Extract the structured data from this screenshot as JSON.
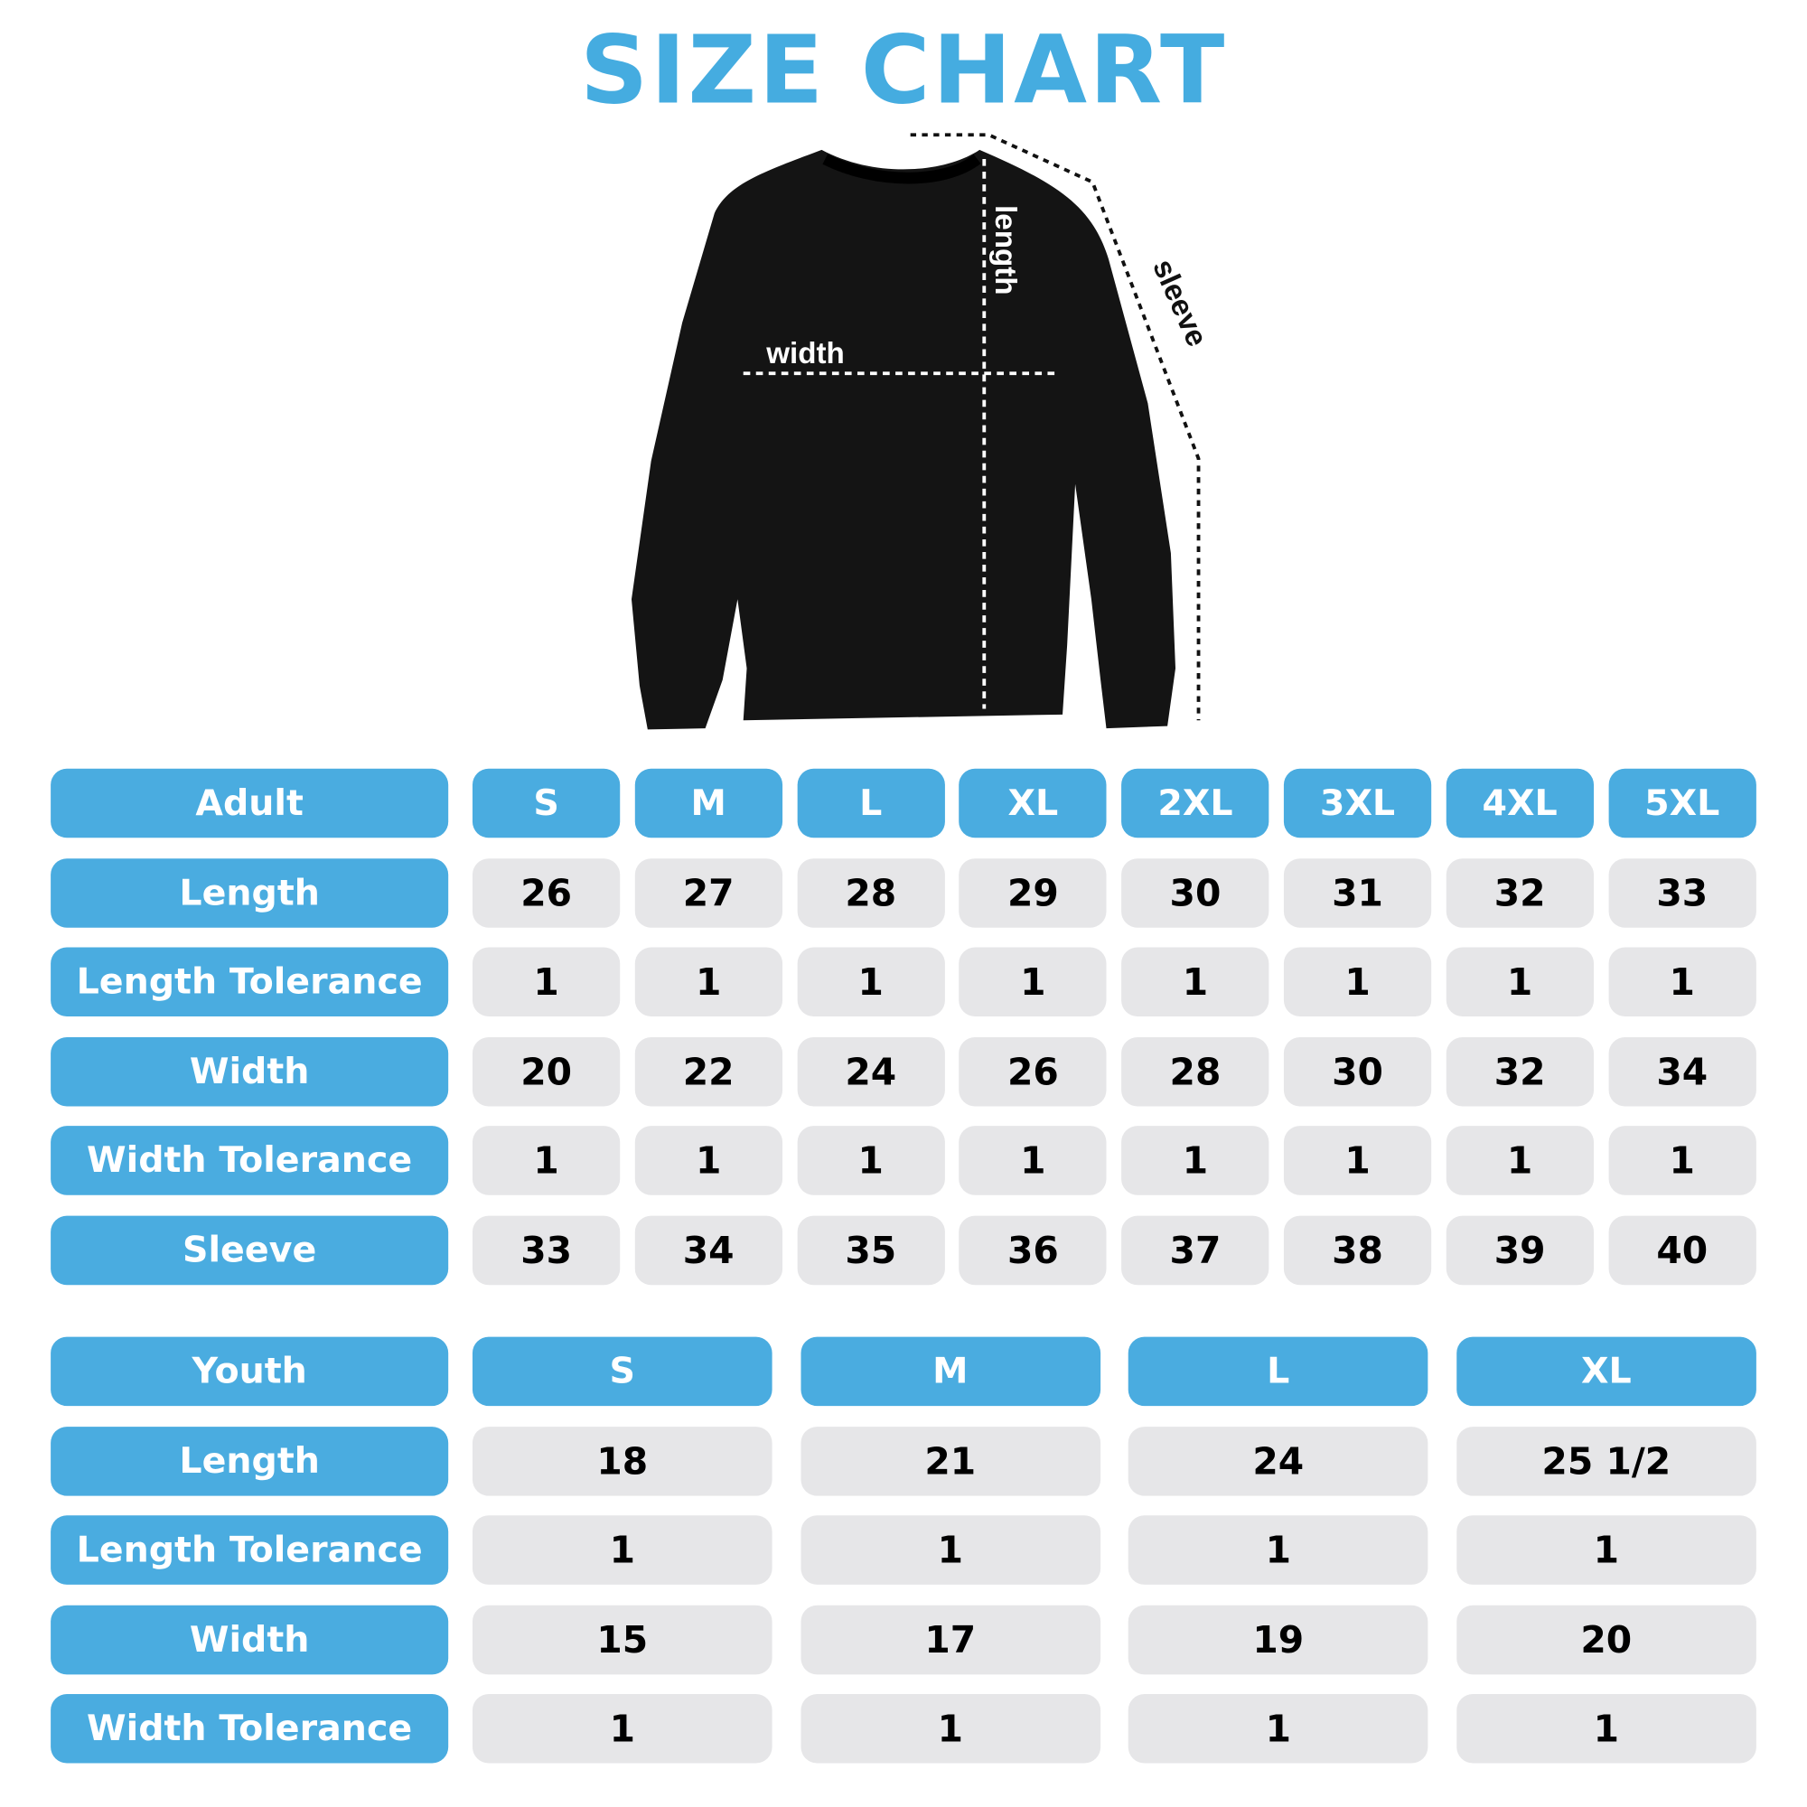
{
  "title": "SIZE CHART",
  "diagram": {
    "width_label": "width",
    "length_label": "length",
    "sleeve_label": "sleeve"
  },
  "colors": {
    "accent": "#4AACE0",
    "cell": "#E6E6E8",
    "garment": "#111111"
  },
  "adult": {
    "header": "Adult",
    "sizes": [
      "S",
      "M",
      "L",
      "XL",
      "2XL",
      "3XL",
      "4XL",
      "5XL"
    ],
    "rows": [
      {
        "label": "Length",
        "values": [
          "26",
          "27",
          "28",
          "29",
          "30",
          "31",
          "32",
          "33"
        ]
      },
      {
        "label": "Length Tolerance",
        "values": [
          "1",
          "1",
          "1",
          "1",
          "1",
          "1",
          "1",
          "1"
        ]
      },
      {
        "label": "Width",
        "values": [
          "20",
          "22",
          "24",
          "26",
          "28",
          "30",
          "32",
          "34"
        ]
      },
      {
        "label": "Width Tolerance",
        "values": [
          "1",
          "1",
          "1",
          "1",
          "1",
          "1",
          "1",
          "1"
        ]
      },
      {
        "label": "Sleeve",
        "values": [
          "33",
          "34",
          "35",
          "36",
          "37",
          "38",
          "39",
          "40"
        ]
      }
    ]
  },
  "youth": {
    "header": "Youth",
    "sizes": [
      "S",
      "M",
      "L",
      "XL"
    ],
    "rows": [
      {
        "label": "Length",
        "values": [
          "18",
          "21",
          "24",
          "25 1/2"
        ]
      },
      {
        "label": "Length Tolerance",
        "values": [
          "1",
          "1",
          "1",
          "1"
        ]
      },
      {
        "label": "Width",
        "values": [
          "15",
          "17",
          "19",
          "20"
        ]
      },
      {
        "label": "Width Tolerance",
        "values": [
          "1",
          "1",
          "1",
          "1"
        ]
      }
    ]
  }
}
